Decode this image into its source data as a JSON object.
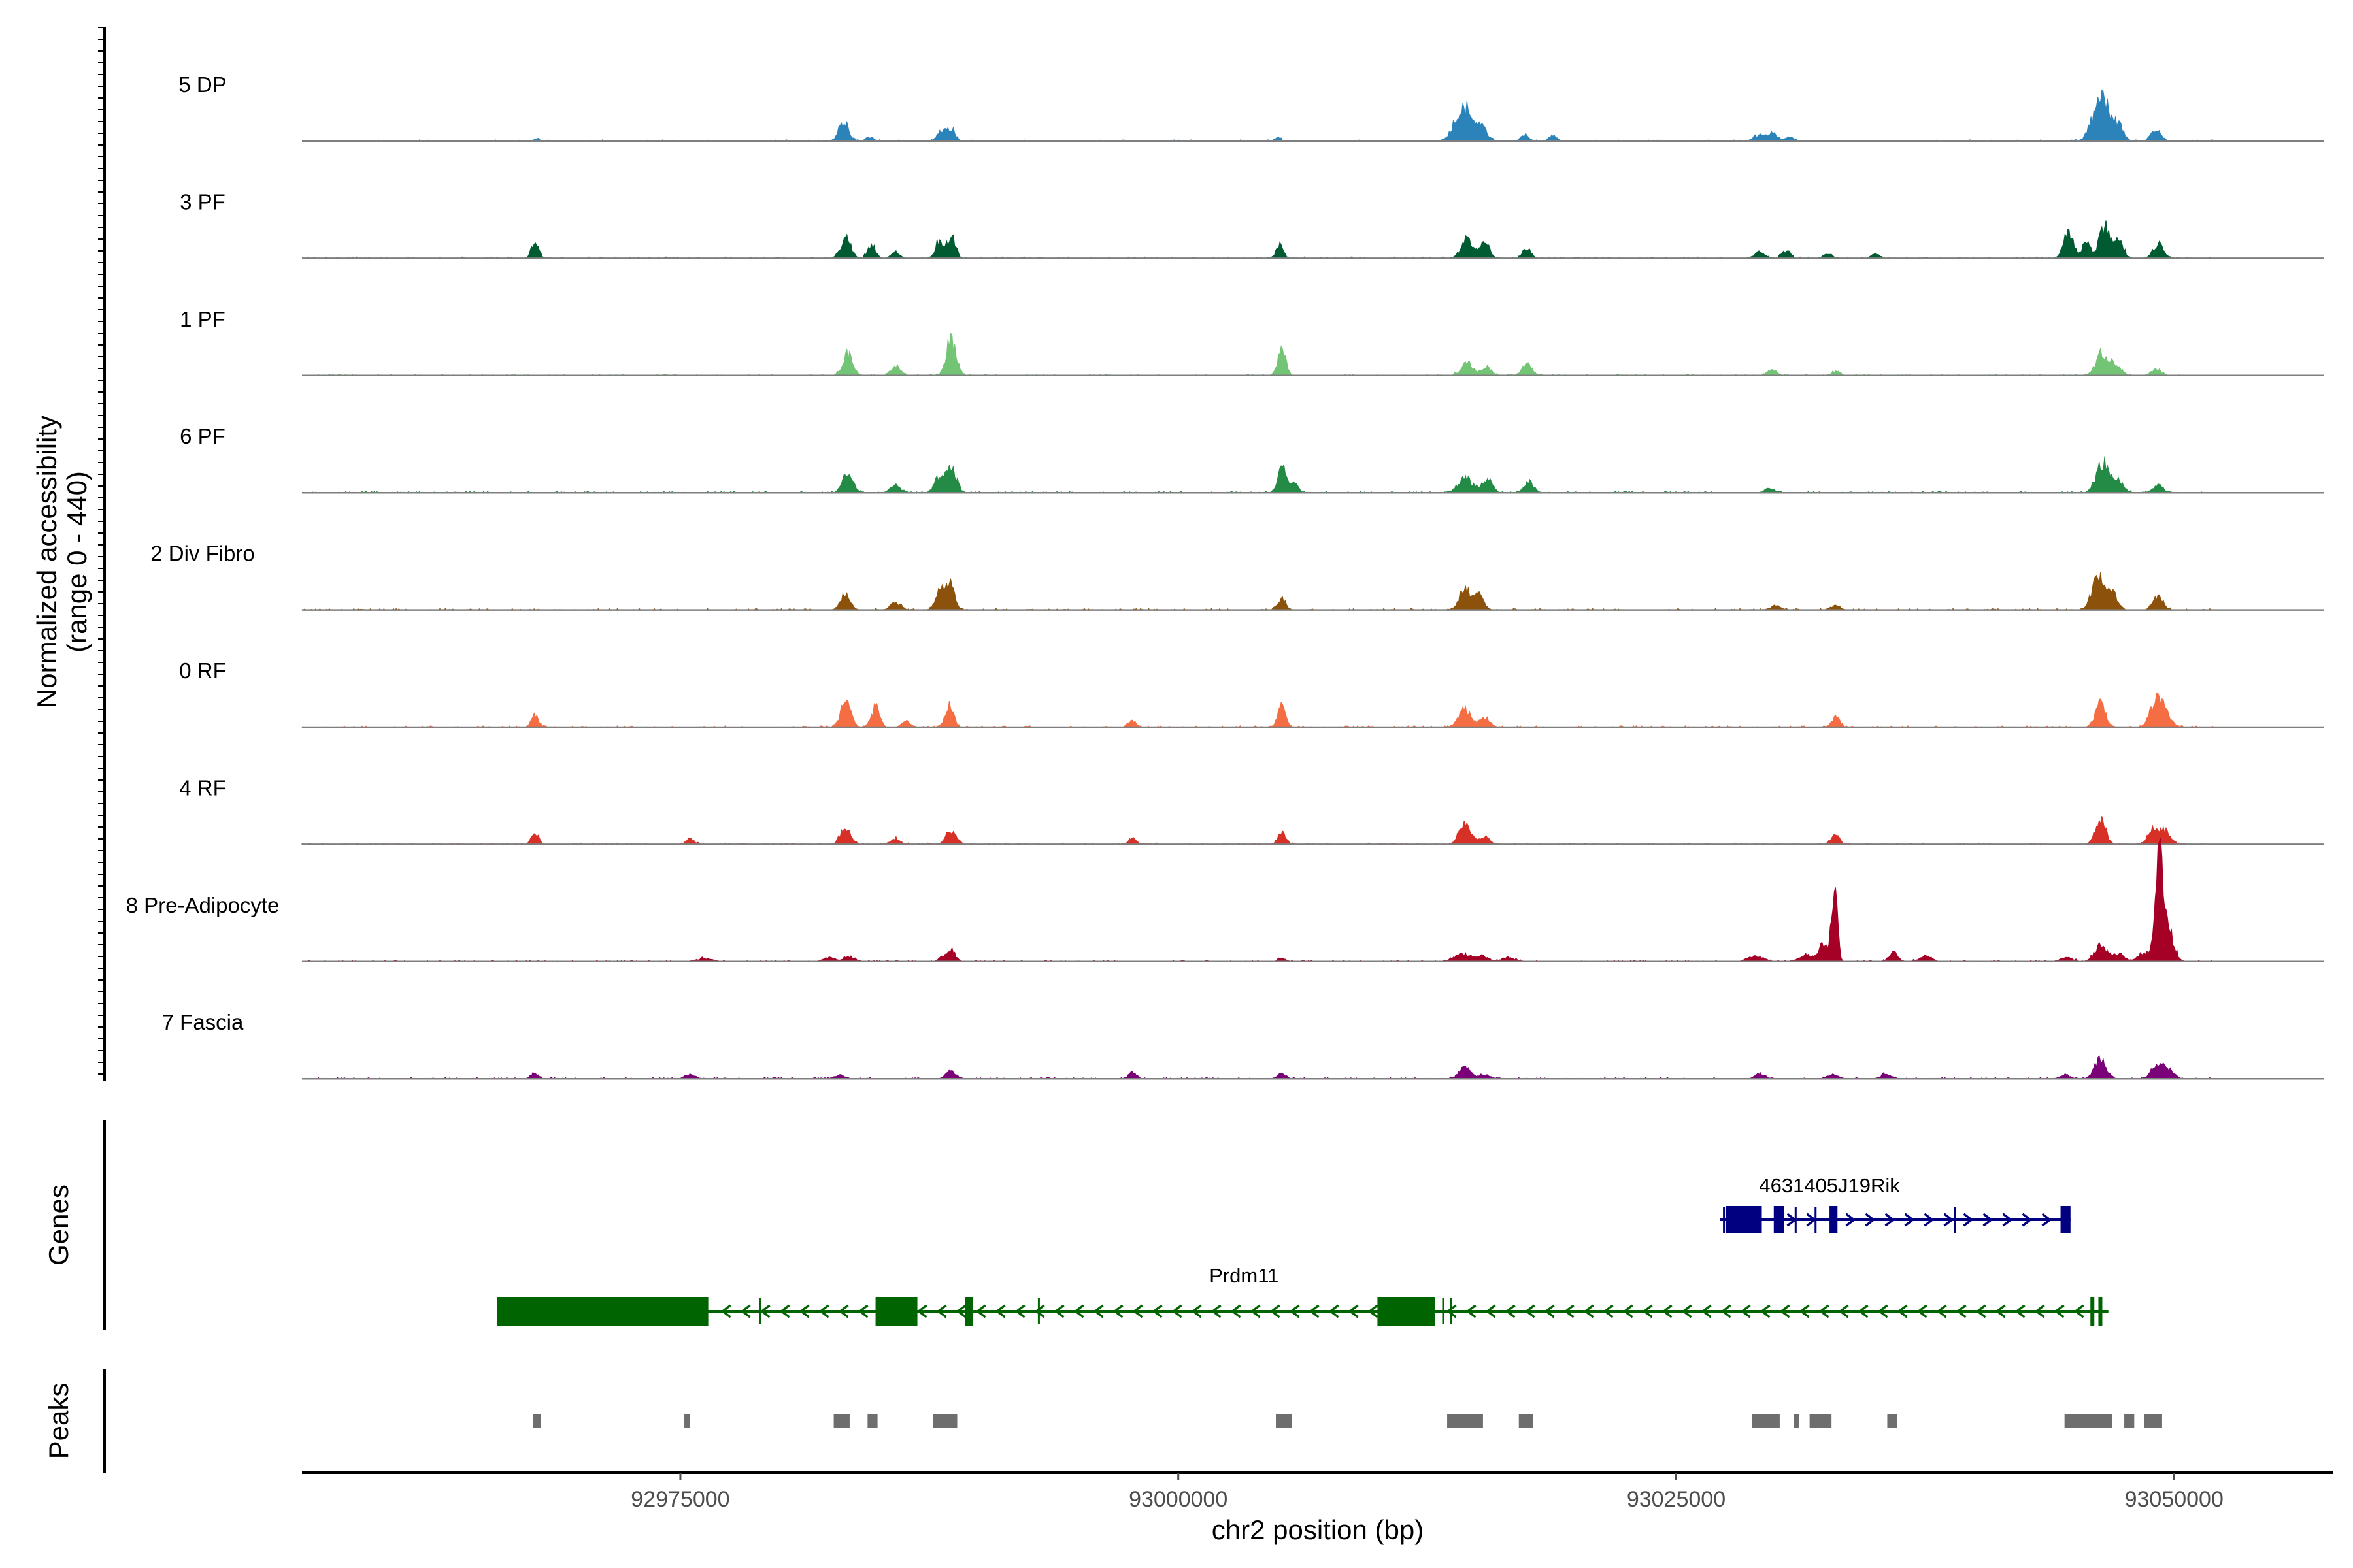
{
  "chart_data": {
    "type": "area",
    "title": "",
    "ylabel": "Normalized accessibility\n(range 0 - 440)",
    "ylabel_line1": "Normalized accessibility",
    "ylabel_line2": "(range 0 - 440)",
    "y_range": [
      0,
      440
    ],
    "xlabel": "chr2 position (bp)",
    "xlim": [
      92956000,
      93058000
    ],
    "x_ticks": [
      92975000,
      93000000,
      93025000,
      93050000
    ],
    "x_tick_labels": [
      "92975000",
      "93000000",
      "93025000",
      "93050000"
    ],
    "signal_extent": [
      92956000,
      93052000
    ],
    "gridlines": false,
    "tracks": [
      {
        "name": "5 DP",
        "color": "#2b83ba",
        "peaks": [
          [
            92967800,
            4,
            150
          ],
          [
            92983200,
            38,
            250
          ],
          [
            92984500,
            8,
            200
          ],
          [
            92988100,
            20,
            200
          ],
          [
            92988600,
            26,
            200
          ],
          [
            93005000,
            8,
            150
          ],
          [
            93014300,
            70,
            400
          ],
          [
            93015200,
            25,
            300
          ],
          [
            93017400,
            12,
            200
          ],
          [
            93018800,
            10,
            200
          ],
          [
            93029100,
            12,
            250
          ],
          [
            93029800,
            15,
            250
          ],
          [
            93030700,
            8,
            200
          ],
          [
            93046000,
            40,
            300
          ],
          [
            93046500,
            70,
            300
          ],
          [
            93047200,
            30,
            250
          ],
          [
            93049100,
            22,
            250
          ]
        ]
      },
      {
        "name": "3 PF",
        "color": "#005a32",
        "peaks": [
          [
            92967700,
            30,
            180
          ],
          [
            92983300,
            40,
            250
          ],
          [
            92984600,
            25,
            200
          ],
          [
            92985800,
            12,
            200
          ],
          [
            92988000,
            35,
            200
          ],
          [
            92988600,
            45,
            200
          ],
          [
            93005100,
            25,
            180
          ],
          [
            93014500,
            38,
            300
          ],
          [
            93015400,
            28,
            250
          ],
          [
            93017500,
            20,
            200
          ],
          [
            93029200,
            12,
            250
          ],
          [
            93030500,
            14,
            200
          ],
          [
            93032600,
            10,
            200
          ],
          [
            93035000,
            8,
            200
          ],
          [
            93044700,
            48,
            250
          ],
          [
            93045600,
            30,
            200
          ],
          [
            93046500,
            62,
            250
          ],
          [
            93047200,
            32,
            250
          ],
          [
            93049200,
            28,
            250
          ]
        ]
      },
      {
        "name": "1 PF",
        "color": "#74c476",
        "peaks": [
          [
            92983400,
            42,
            250
          ],
          [
            92985800,
            18,
            250
          ],
          [
            92988600,
            70,
            250
          ],
          [
            93005200,
            48,
            200
          ],
          [
            93014500,
            24,
            300
          ],
          [
            93015500,
            18,
            250
          ],
          [
            93017500,
            22,
            250
          ],
          [
            93029800,
            10,
            250
          ],
          [
            93033000,
            8,
            200
          ],
          [
            93046400,
            45,
            300
          ],
          [
            93047100,
            22,
            250
          ],
          [
            93049100,
            12,
            250
          ]
        ]
      },
      {
        "name": "6 PF",
        "color": "#238b45",
        "peaks": [
          [
            92983400,
            38,
            250
          ],
          [
            92985800,
            14,
            250
          ],
          [
            92988000,
            28,
            250
          ],
          [
            92988600,
            48,
            250
          ],
          [
            93005200,
            50,
            200
          ],
          [
            93005800,
            18,
            200
          ],
          [
            93014400,
            30,
            350
          ],
          [
            93015500,
            28,
            250
          ],
          [
            93017600,
            20,
            250
          ],
          [
            93029700,
            8,
            250
          ],
          [
            93046400,
            60,
            300
          ],
          [
            93047200,
            25,
            250
          ],
          [
            93049200,
            15,
            250
          ]
        ]
      },
      {
        "name": "2 Div Fibro",
        "color": "#8c510a",
        "peaks": [
          [
            92983300,
            30,
            250
          ],
          [
            92985800,
            14,
            250
          ],
          [
            92988100,
            40,
            250
          ],
          [
            92988600,
            45,
            200
          ],
          [
            93005200,
            22,
            200
          ],
          [
            93014400,
            40,
            300
          ],
          [
            93015100,
            25,
            250
          ],
          [
            93030000,
            8,
            250
          ],
          [
            93033000,
            8,
            250
          ],
          [
            93046200,
            70,
            300
          ],
          [
            93046900,
            35,
            250
          ],
          [
            93049200,
            25,
            250
          ]
        ]
      },
      {
        "name": "0 RF",
        "color": "#f46d43",
        "peaks": [
          [
            92967700,
            22,
            180
          ],
          [
            92983300,
            50,
            250
          ],
          [
            92984800,
            40,
            200
          ],
          [
            92986300,
            12,
            200
          ],
          [
            92988500,
            45,
            200
          ],
          [
            92997700,
            12,
            200
          ],
          [
            93005200,
            42,
            200
          ],
          [
            93014400,
            38,
            300
          ],
          [
            93015400,
            18,
            250
          ],
          [
            93033000,
            20,
            200
          ],
          [
            93046300,
            50,
            250
          ],
          [
            93049100,
            50,
            300
          ],
          [
            93049600,
            25,
            250
          ]
        ]
      },
      {
        "name": "4 RF",
        "color": "#d73027",
        "peaks": [
          [
            92967700,
            22,
            180
          ],
          [
            92975500,
            10,
            200
          ],
          [
            92983300,
            32,
            250
          ],
          [
            92985800,
            10,
            250
          ],
          [
            92988600,
            28,
            250
          ],
          [
            92997700,
            12,
            200
          ],
          [
            93005200,
            22,
            200
          ],
          [
            93014400,
            40,
            300
          ],
          [
            93015400,
            14,
            250
          ],
          [
            93033000,
            20,
            200
          ],
          [
            93046300,
            50,
            250
          ],
          [
            93049000,
            30,
            300
          ],
          [
            93049600,
            22,
            250
          ]
        ]
      },
      {
        "name": "8 Pre-Adipocyte",
        "color": "#a50026",
        "peaks": [
          [
            92976200,
            6,
            400
          ],
          [
            92982500,
            8,
            300
          ],
          [
            92983500,
            10,
            250
          ],
          [
            92988200,
            10,
            200
          ],
          [
            92988600,
            22,
            200
          ],
          [
            93005200,
            6,
            200
          ],
          [
            93014300,
            14,
            450
          ],
          [
            93015300,
            10,
            300
          ],
          [
            93016600,
            8,
            300
          ],
          [
            93029000,
            10,
            400
          ],
          [
            93031500,
            14,
            300
          ],
          [
            93032400,
            35,
            250
          ],
          [
            93032950,
            150,
            140
          ],
          [
            93035900,
            20,
            200
          ],
          [
            93037500,
            10,
            300
          ],
          [
            93044600,
            8,
            300
          ],
          [
            93046300,
            30,
            300
          ],
          [
            93047200,
            15,
            300
          ],
          [
            93048500,
            18,
            300
          ],
          [
            93049300,
            200,
            220
          ],
          [
            93049800,
            45,
            250
          ]
        ]
      },
      {
        "name": "7 Fascia",
        "color": "#7a0177",
        "peaks": [
          [
            92967700,
            10,
            200
          ],
          [
            92975500,
            8,
            250
          ],
          [
            92983000,
            8,
            250
          ],
          [
            92988600,
            14,
            250
          ],
          [
            92997700,
            12,
            200
          ],
          [
            93005200,
            10,
            200
          ],
          [
            93014400,
            22,
            300
          ],
          [
            93015400,
            8,
            250
          ],
          [
            93029200,
            10,
            250
          ],
          [
            93032900,
            10,
            250
          ],
          [
            93035500,
            8,
            250
          ],
          [
            93044500,
            8,
            250
          ],
          [
            93046300,
            38,
            300
          ],
          [
            93049200,
            30,
            300
          ],
          [
            93049800,
            15,
            250
          ]
        ]
      }
    ],
    "genes": [
      {
        "name": "4631405J19Rik",
        "strand": "+",
        "color": "#000080",
        "start": 93027200,
        "end": 93044800,
        "exons": [
          [
            93027500,
            93029300
          ],
          [
            93029900,
            93030400
          ],
          [
            93032700,
            93033100
          ],
          [
            93044300,
            93044800
          ]
        ],
        "small_ticks": [
          93027400,
          93031000,
          93032000,
          93039000
        ]
      },
      {
        "name": "Prdm11",
        "strand": "-",
        "color": "#006400",
        "start": 92965800,
        "end": 93046700,
        "exons": [
          [
            92965800,
            92976400
          ],
          [
            92984800,
            92986900
          ],
          [
            92989300,
            92989700
          ],
          [
            93010000,
            93012900
          ],
          [
            93045800,
            93045950
          ],
          [
            93046200,
            93046350
          ]
        ],
        "small_ticks": [
          92979000,
          92993000,
          93013300,
          93013700
        ]
      }
    ],
    "peaks_track": [
      [
        92967600,
        92968000
      ],
      [
        92975200,
        92975400
      ],
      [
        92982700,
        92983500
      ],
      [
        92984400,
        92984900
      ],
      [
        92987700,
        92988900
      ],
      [
        93004900,
        93005700
      ],
      [
        93013500,
        93015300
      ],
      [
        93017100,
        93017800
      ],
      [
        93028800,
        93030200
      ],
      [
        93030900,
        93031100
      ],
      [
        93031700,
        93032800
      ],
      [
        93035600,
        93036100
      ],
      [
        93044500,
        93046900
      ],
      [
        93047500,
        93048000
      ],
      [
        93048500,
        93049400
      ]
    ],
    "panel_labels": {
      "genes": "Genes",
      "peaks": "Peaks"
    }
  }
}
